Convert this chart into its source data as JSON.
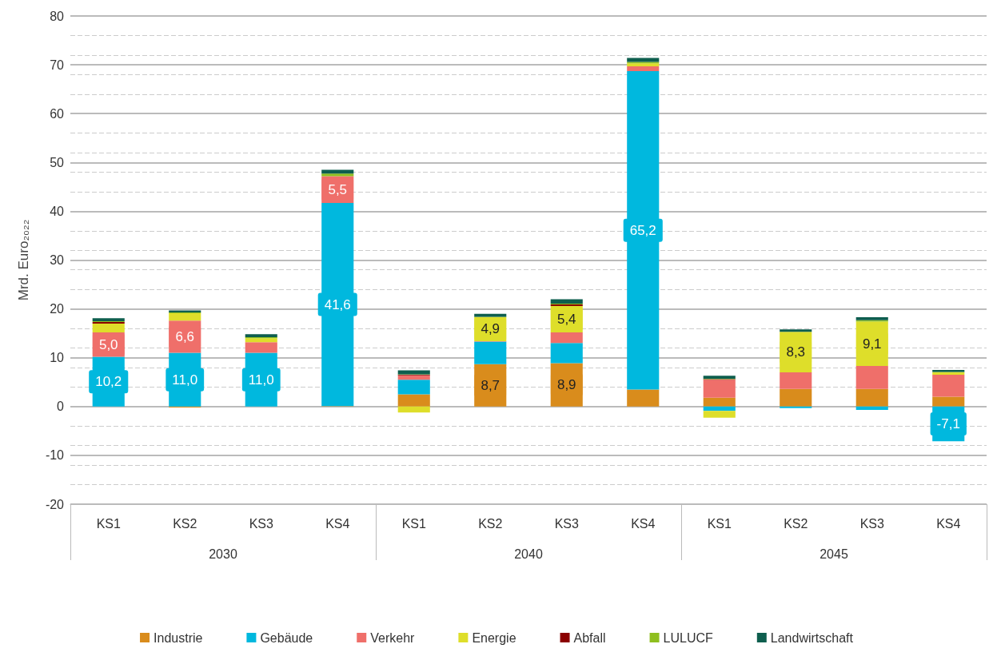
{
  "chart_data": {
    "type": "bar",
    "stacked": true,
    "ylabel": "Mrd. Euro₂₀₂₂",
    "categories": [
      "KS1",
      "KS2",
      "KS3",
      "KS4",
      "KS1",
      "KS2",
      "KS3",
      "KS4",
      "KS1",
      "KS2",
      "KS3",
      "KS4"
    ],
    "annotations": [
      "2030",
      "2040",
      "2045"
    ],
    "series": [
      {
        "name": "Industrie",
        "color": "#d98c1c",
        "values": [
          0,
          -0.2,
          0,
          0.1,
          2.5,
          8.7,
          8.9,
          3.5,
          1.8,
          3.6,
          3.6,
          2.0
        ],
        "value_labels": [
          null,
          null,
          null,
          null,
          null,
          "8,7",
          "8,9",
          null,
          null,
          null,
          null,
          null
        ]
      },
      {
        "name": "Gebäude",
        "color": "#00b8de",
        "values": [
          10.2,
          11.0,
          11.0,
          41.6,
          3.0,
          4.6,
          4.1,
          65.2,
          -0.9,
          -0.3,
          -0.7,
          -7.1
        ],
        "value_labels": [
          "10,2",
          "11,0",
          "11,0",
          "41,6",
          null,
          null,
          null,
          "65,2",
          null,
          null,
          null,
          "-7,1"
        ]
      },
      {
        "name": "Verkehr",
        "color": "#ef6f6a",
        "values": [
          5.0,
          6.6,
          2.2,
          5.5,
          0.9,
          0.1,
          2.2,
          1.0,
          3.7,
          3.4,
          4.7,
          4.5
        ],
        "value_labels": [
          "5,0",
          "6,6",
          null,
          "5,5",
          null,
          null,
          null,
          null,
          null,
          null,
          null,
          null
        ]
      },
      {
        "name": "Energie",
        "color": "#dede2a",
        "values": [
          1.8,
          1.5,
          0.8,
          0,
          -1.2,
          4.9,
          5.4,
          0.6,
          -1.4,
          8.3,
          9.1,
          0.5
        ],
        "value_labels": [
          null,
          null,
          null,
          null,
          null,
          "4,9",
          "5,4",
          null,
          null,
          "8,3",
          "9,1",
          null
        ]
      },
      {
        "name": "Abfall",
        "color": "#8b0000",
        "values": [
          0.3,
          null,
          null,
          null,
          0.1,
          null,
          0.3,
          null,
          0.1,
          null,
          null,
          null
        ],
        "value_labels": [
          null,
          null,
          null,
          null,
          null,
          null,
          null,
          null,
          null,
          null,
          null,
          null
        ]
      },
      {
        "name": "LULUCF",
        "color": "#8fbf1f",
        "values": [
          0.2,
          0.2,
          0.2,
          0.5,
          0.1,
          0.1,
          0.2,
          0.3,
          0.1,
          null,
          0.3,
          0.1
        ],
        "value_labels": [
          null,
          null,
          null,
          null,
          null,
          null,
          null,
          null,
          null,
          null,
          null,
          null
        ]
      },
      {
        "name": "Landwirtschaft",
        "color": "#0e5e4e",
        "values": [
          0.6,
          0.4,
          0.6,
          0.8,
          0.8,
          0.6,
          0.9,
          0.8,
          0.6,
          0.5,
          0.6,
          0.4
        ],
        "value_labels": [
          null,
          null,
          null,
          null,
          null,
          null,
          null,
          null,
          null,
          null,
          null,
          null
        ]
      }
    ],
    "ylim": [
      -20,
      80
    ],
    "yticks": [
      -20,
      -10,
      0,
      10,
      20,
      30,
      40,
      50,
      60,
      70,
      80
    ],
    "grid": true,
    "legend": "bottom"
  }
}
